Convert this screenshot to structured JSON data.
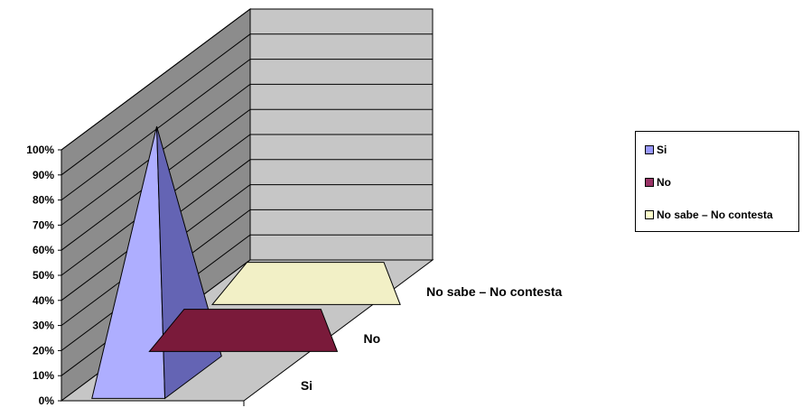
{
  "chart_data": {
    "type": "3d-pyramid",
    "title": "",
    "xlabel": "",
    "ylabel": "",
    "ylim": [
      0,
      100
    ],
    "y_ticks": [
      "0%",
      "10%",
      "20%",
      "30%",
      "40%",
      "50%",
      "60%",
      "70%",
      "80%",
      "90%",
      "100%"
    ],
    "categories": [
      "Si",
      "No",
      "No sabe – No contesta"
    ],
    "values": [
      100,
      0,
      0
    ],
    "unit": "%",
    "grid": true,
    "legend_position": "right",
    "series": [
      {
        "name": "Si",
        "value": 100,
        "color": "#9999FF"
      },
      {
        "name": "No",
        "value": 0,
        "color": "#993366"
      },
      {
        "name": "No sabe – No contesta",
        "value": 0,
        "color": "#FFFFCC"
      }
    ]
  }
}
